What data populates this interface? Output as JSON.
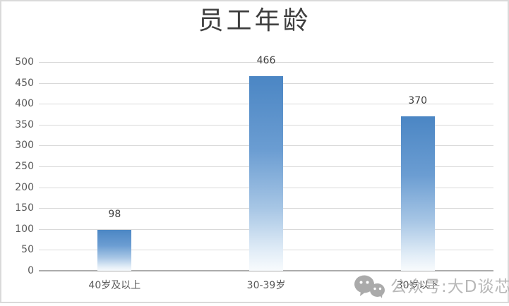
{
  "chart_data": {
    "type": "bar",
    "title": "员工年龄",
    "categories": [
      "40岁及以上",
      "30-39岁",
      "30岁以下"
    ],
    "values": [
      98,
      466,
      370
    ],
    "data_labels": [
      "98",
      "466",
      "370"
    ],
    "xlabel": "",
    "ylabel": "",
    "ylim": [
      0,
      500
    ],
    "ytick_step": 50,
    "ytick_labels": [
      "0",
      "50",
      "100",
      "150",
      "200",
      "250",
      "300",
      "350",
      "400",
      "450",
      "500"
    ],
    "grid": true,
    "legend": "none",
    "bar_gradient_top": "#4b86c4",
    "bar_gradient_bottom": "#f8fbfd",
    "gridline_color": "#d9d9d9",
    "axis_line_color": "#ababab",
    "label_color": "#595959",
    "value_label_color": "#404040",
    "title_color": "#3f3f3f"
  },
  "watermark": {
    "text": "公众号:大D谈芯",
    "icon": "wechat-icon",
    "color": "#b2b2b2"
  }
}
